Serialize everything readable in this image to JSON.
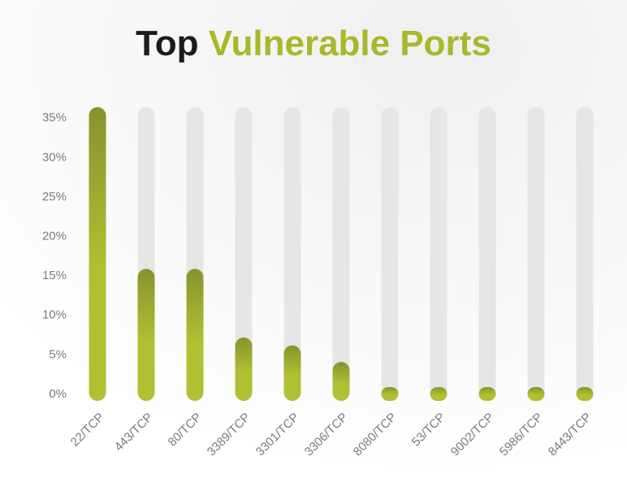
{
  "chart_data": {
    "type": "bar",
    "title": "Top",
    "title_highlight": "Vulnerable Ports",
    "title_color": "#1b1b1b",
    "highlight_color": "#a8b82a",
    "categories": [
      "22/TCP",
      "443/TCP",
      "80/TCP",
      "3389/TCP",
      "3301/TCP",
      "3306/TCP",
      "8080/TCP",
      "53/TCP",
      "9002/TCP",
      "5986/TCP",
      "8443/TCP"
    ],
    "values": [
      36,
      15.5,
      15.5,
      6.8,
      5.8,
      3.7,
      0.5,
      0.5,
      0.5,
      0.5,
      0.5
    ],
    "color": "#b1bf32",
    "track_color": "#e6e6e6",
    "ylim": [
      0,
      36
    ],
    "yticks": [
      {
        "value": 0,
        "label": "0%"
      },
      {
        "value": 5,
        "label": "5%"
      },
      {
        "value": 10,
        "label": "10%"
      },
      {
        "value": 15,
        "label": "15%"
      },
      {
        "value": 20,
        "label": "20%"
      },
      {
        "value": 25,
        "label": "25%"
      },
      {
        "value": 30,
        "label": "30%"
      },
      {
        "value": 35,
        "label": "35%"
      }
    ],
    "grid": false
  }
}
